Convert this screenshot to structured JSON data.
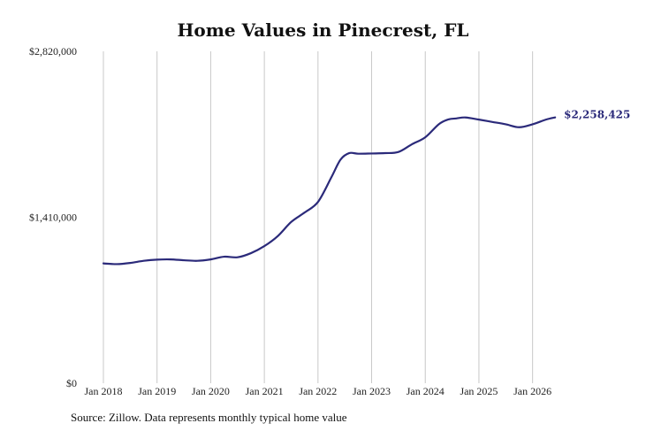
{
  "chart_data": {
    "type": "line",
    "title": "Home Values in Pinecrest, FL",
    "xlabel": "",
    "ylabel": "",
    "x_ticks": [
      2018,
      2019,
      2020,
      2021,
      2022,
      2023,
      2024,
      2025,
      2026
    ],
    "x_tick_labels": [
      "Jan 2018",
      "Jan 2019",
      "Jan 2020",
      "Jan 2021",
      "Jan 2022",
      "Jan 2023",
      "Jan 2024",
      "Jan 2025",
      "Jan 2026"
    ],
    "y_ticks": [
      0,
      1410000,
      2820000
    ],
    "y_tick_labels": [
      "$0",
      "$1,410,000",
      "$2,820,000"
    ],
    "ylim": [
      0,
      2820000
    ],
    "xlim": [
      2018,
      2026.5
    ],
    "grid": "vertical",
    "line_color": "#2b2a7a",
    "series": [
      {
        "name": "",
        "x": [
          2018.0,
          2018.25,
          2018.5,
          2018.75,
          2019.0,
          2019.25,
          2019.5,
          2019.75,
          2020.0,
          2020.25,
          2020.5,
          2020.75,
          2021.0,
          2021.25,
          2021.5,
          2021.75,
          2022.0,
          2022.25,
          2022.42,
          2022.58,
          2022.75,
          2023.0,
          2023.25,
          2023.5,
          2023.75,
          2024.0,
          2024.25,
          2024.42,
          2024.58,
          2024.75,
          2025.0,
          2025.25,
          2025.5,
          2025.75,
          2026.0,
          2026.25,
          2026.42
        ],
        "y": [
          1018000,
          1012000,
          1022000,
          1040000,
          1050000,
          1052000,
          1045000,
          1040000,
          1052000,
          1075000,
          1070000,
          1105000,
          1165000,
          1250000,
          1370000,
          1450000,
          1540000,
          1750000,
          1900000,
          1955000,
          1950000,
          1952000,
          1955000,
          1965000,
          2030000,
          2090000,
          2200000,
          2240000,
          2250000,
          2258000,
          2240000,
          2220000,
          2200000,
          2175000,
          2200000,
          2240000,
          2258425
        ]
      }
    ],
    "end_label": "$2,258,425"
  },
  "source_note": "Source: Zillow. Data represents monthly typical home value"
}
